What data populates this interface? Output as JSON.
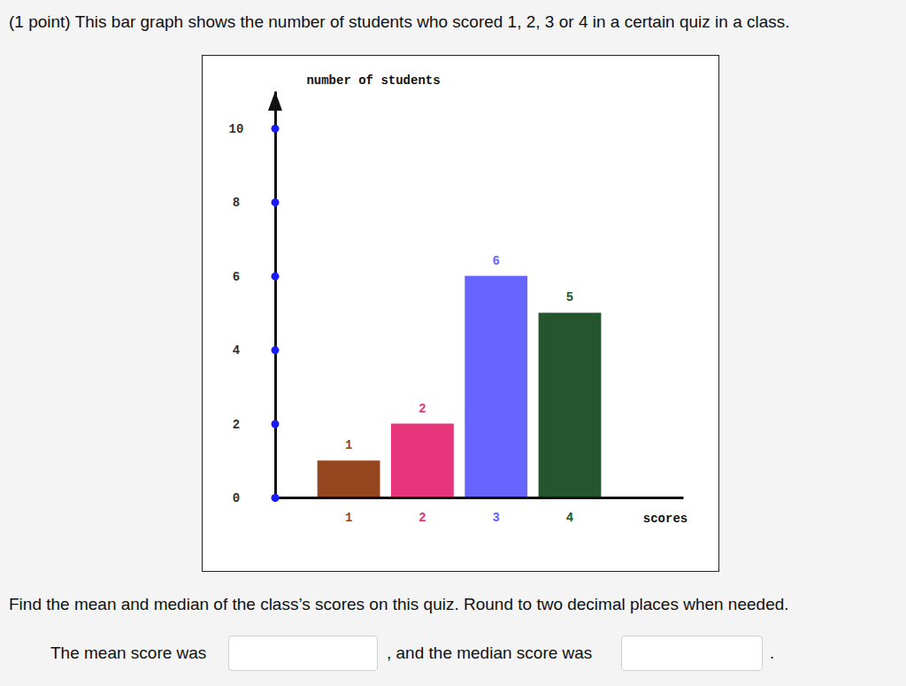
{
  "question": {
    "prompt": "(1 point) This bar graph shows the number of students who scored 1, 2, 3 or 4 in a certain quiz in a class.",
    "instruction": "Find the mean and median of the class’s scores on this quiz. Round to two decimal places when needed.",
    "answer_parts": [
      "The mean score was",
      ", and the median score was",
      "."
    ]
  },
  "chart_data": {
    "type": "bar",
    "categories": [
      "1",
      "2",
      "3",
      "4"
    ],
    "values": [
      1,
      2,
      6,
      5
    ],
    "colors": [
      "#96461f",
      "#e8347a",
      "#6666ff",
      "#24552c"
    ],
    "x_label": "scores",
    "y_label": "number of students",
    "ylim": [
      0,
      11
    ],
    "yticks": [
      0,
      2,
      4,
      6,
      8,
      10
    ],
    "data_labels": true,
    "grid": false
  }
}
